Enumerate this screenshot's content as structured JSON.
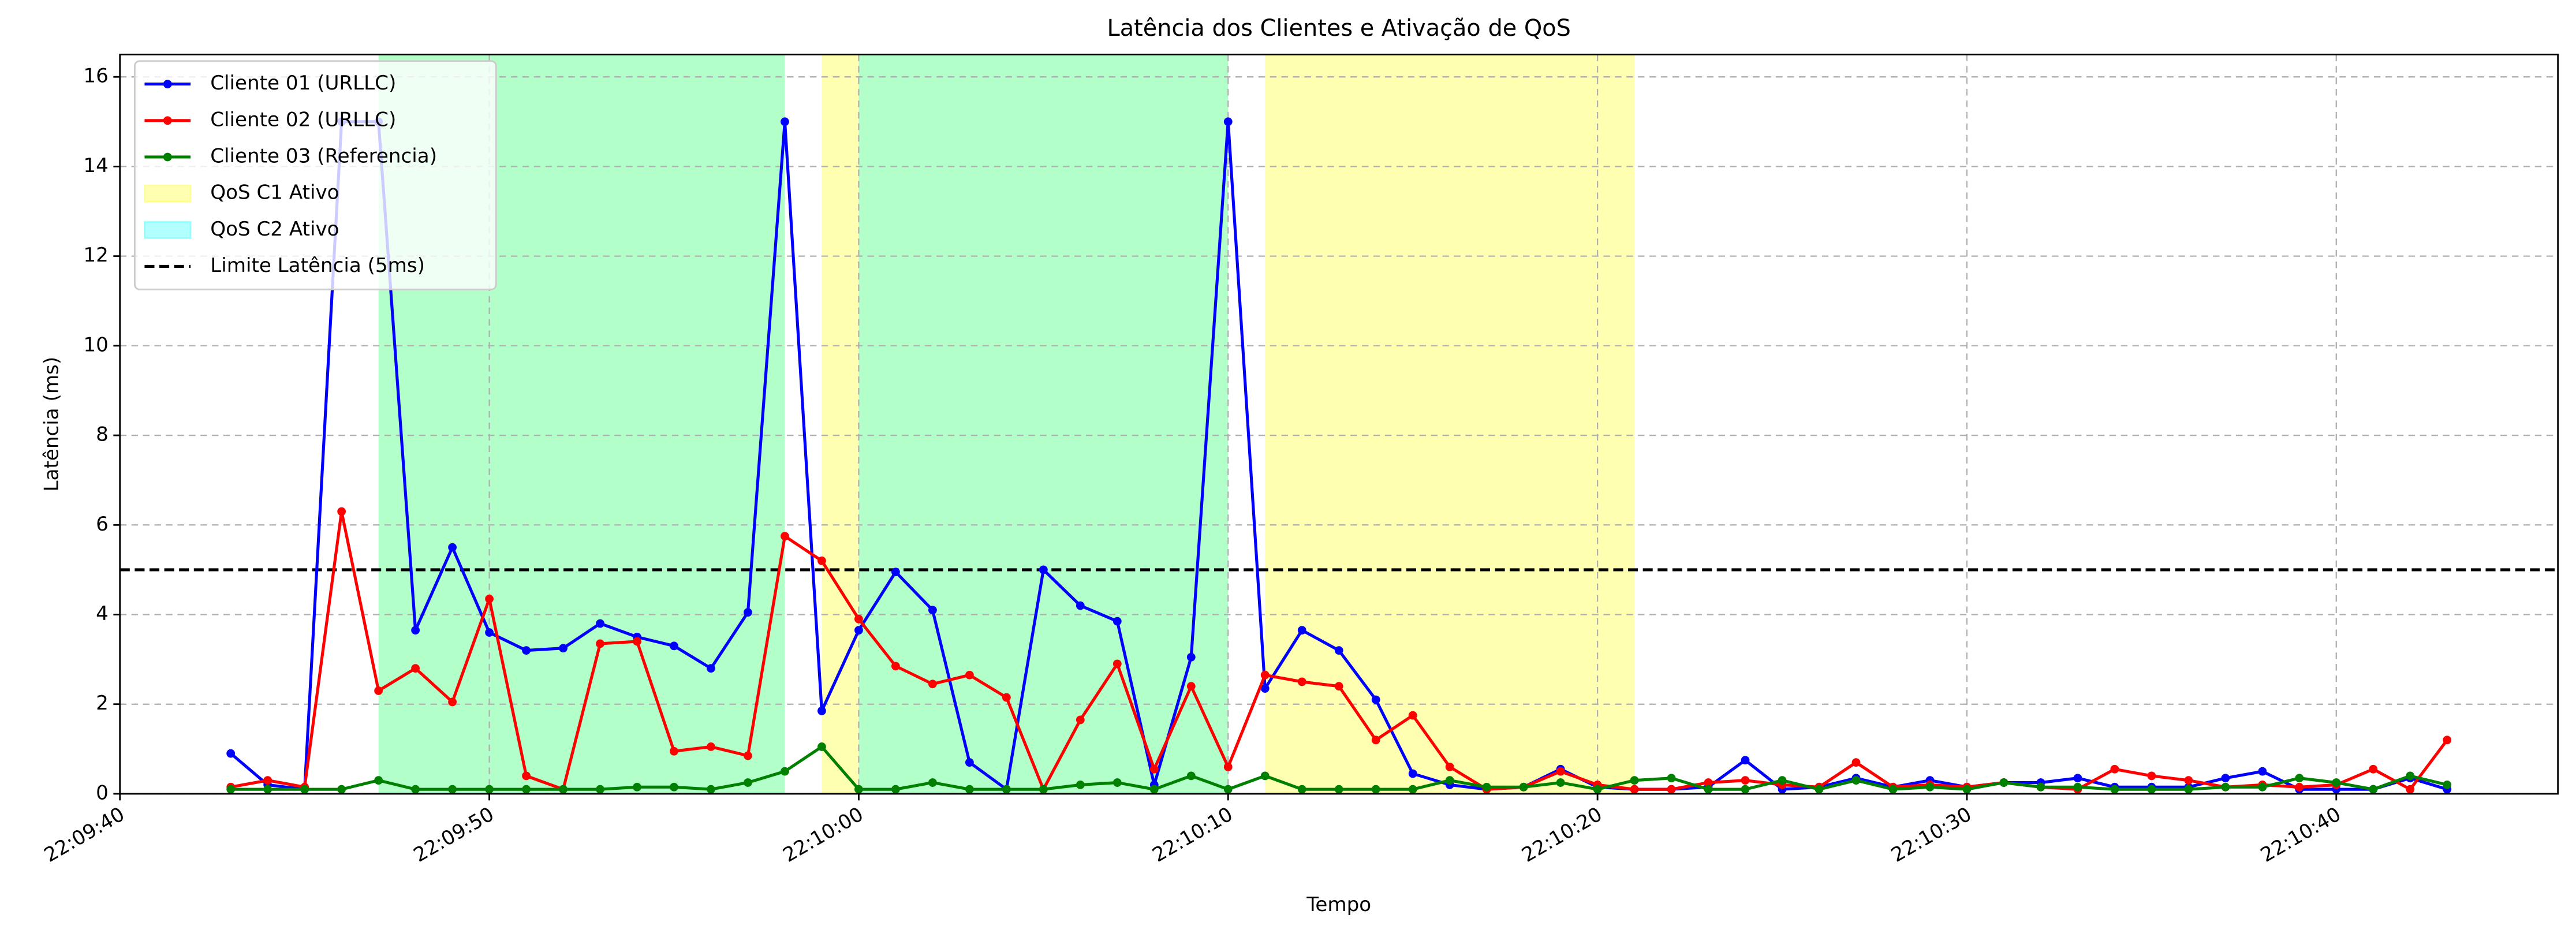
{
  "chart_data": {
    "type": "line",
    "title": "Latência dos Clientes e Ativação de QoS",
    "x_label": "Tempo",
    "y_label": "Latência (ms)",
    "x": [
      "22:09:43",
      "22:09:44",
      "22:09:45",
      "22:09:46",
      "22:09:47",
      "22:09:48",
      "22:09:49",
      "22:09:50",
      "22:09:51",
      "22:09:52",
      "22:09:53",
      "22:09:54",
      "22:09:55",
      "22:09:56",
      "22:09:57",
      "22:09:58",
      "22:09:59",
      "22:10:00",
      "22:10:01",
      "22:10:02",
      "22:10:03",
      "22:10:04",
      "22:10:05",
      "22:10:06",
      "22:10:07",
      "22:10:08",
      "22:10:09",
      "22:10:10",
      "22:10:11",
      "22:10:12",
      "22:10:13",
      "22:10:14",
      "22:10:15",
      "22:10:16",
      "22:10:17",
      "22:10:18",
      "22:10:19",
      "22:10:20",
      "22:10:21",
      "22:10:22",
      "22:10:23",
      "22:10:24",
      "22:10:25",
      "22:10:26",
      "22:10:27",
      "22:10:28",
      "22:10:29",
      "22:10:30",
      "22:10:31",
      "22:10:32",
      "22:10:33",
      "22:10:34",
      "22:10:35",
      "22:10:36",
      "22:10:37",
      "22:10:38",
      "22:10:39",
      "22:10:40",
      "22:10:41",
      "22:10:42",
      "22:10:43"
    ],
    "series": [
      {
        "name": "Cliente 01 (URLLC)",
        "color": "#0000ff",
        "values": [
          0.9,
          0.2,
          0.1,
          15,
          15,
          3.65,
          5.5,
          3.6,
          3.2,
          3.25,
          3.8,
          3.5,
          3.3,
          2.8,
          4.05,
          15,
          1.85,
          3.65,
          4.95,
          4.1,
          0.7,
          0.1,
          5.0,
          4.2,
          3.85,
          0.2,
          3.05,
          15,
          2.35,
          3.65,
          3.2,
          2.1,
          0.45,
          0.2,
          0.1,
          0.15,
          0.55,
          0.15,
          0.1,
          0.1,
          0.15,
          0.75,
          0.1,
          0.15,
          0.35,
          0.15,
          0.3,
          0.15,
          0.25,
          0.25,
          0.35,
          0.15,
          0.15,
          0.15,
          0.35,
          0.5,
          0.1,
          0.1,
          0.1,
          0.35,
          0.1
        ]
      },
      {
        "name": "Cliente 02 (URLLC)",
        "color": "#ff0000",
        "values": [
          0.15,
          0.3,
          0.15,
          6.3,
          2.3,
          2.8,
          2.05,
          4.35,
          0.4,
          0.1,
          3.35,
          3.4,
          0.95,
          1.05,
          0.85,
          5.75,
          5.2,
          3.9,
          2.85,
          2.45,
          2.65,
          2.15,
          0.1,
          1.65,
          2.9,
          0.55,
          2.4,
          0.6,
          2.65,
          2.5,
          2.4,
          1.2,
          1.75,
          0.6,
          0.1,
          0.15,
          0.5,
          0.2,
          0.1,
          0.1,
          0.25,
          0.3,
          0.2,
          0.15,
          0.7,
          0.15,
          0.2,
          0.15,
          0.25,
          0.15,
          0.1,
          0.55,
          0.4,
          0.3,
          0.15,
          0.2,
          0.15,
          0.2,
          0.55,
          0.1,
          1.2
        ]
      },
      {
        "name": "Cliente 03 (Referencia)",
        "color": "#008000",
        "values": [
          0.1,
          0.1,
          0.1,
          0.1,
          0.3,
          0.1,
          0.1,
          0.1,
          0.1,
          0.1,
          0.1,
          0.15,
          0.15,
          0.1,
          0.25,
          0.5,
          1.05,
          0.1,
          0.1,
          0.25,
          0.1,
          0.1,
          0.1,
          0.2,
          0.25,
          0.1,
          0.4,
          0.1,
          0.4,
          0.1,
          0.1,
          0.1,
          0.1,
          0.3,
          0.15,
          0.15,
          0.25,
          0.1,
          0.3,
          0.35,
          0.1,
          0.1,
          0.3,
          0.1,
          0.3,
          0.1,
          0.15,
          0.1,
          0.25,
          0.15,
          0.15,
          0.1,
          0.1,
          0.1,
          0.15,
          0.15,
          0.35,
          0.25,
          0.1,
          0.4,
          0.2
        ]
      }
    ],
    "spans": [
      {
        "name": "QoS C1 Ativo",
        "color": "#ffff00",
        "ranges": [
          [
            "22:09:47",
            "22:09:58"
          ],
          [
            "22:09:59",
            "22:10:10"
          ],
          [
            "22:10:11",
            "22:10:21"
          ]
        ]
      },
      {
        "name": "QoS C2 Ativo",
        "color": "#00ffff",
        "ranges": [
          [
            "22:09:47",
            "22:09:58"
          ],
          [
            "22:10:00",
            "22:10:10"
          ]
        ]
      }
    ],
    "threshold": {
      "name": "Limite Latência (5ms)",
      "value": 5,
      "color": "#000000"
    },
    "xlim": [
      "22:09:40",
      "22:10:46"
    ],
    "xticks": [
      "22:09:40",
      "22:09:50",
      "22:10:00",
      "22:10:10",
      "22:10:20",
      "22:10:30",
      "22:10:40"
    ],
    "ylim": [
      0,
      16.5
    ],
    "yticks": [
      0,
      2,
      4,
      6,
      8,
      10,
      12,
      14,
      16
    ],
    "grid": true,
    "legend": "upper left"
  }
}
